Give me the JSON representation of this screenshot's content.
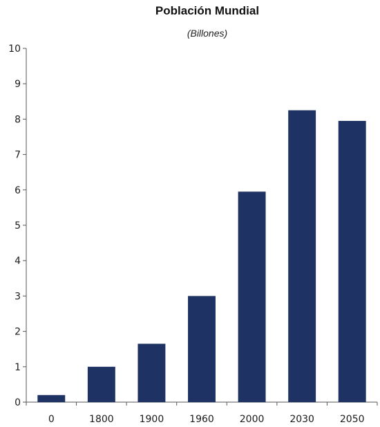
{
  "chart_data": {
    "type": "bar",
    "title": "Población Mundial",
    "subtitle": "(Billones)",
    "xlabel": "",
    "ylabel": "",
    "categories": [
      "0",
      "1800",
      "1900",
      "1960",
      "2000",
      "2030",
      "2050"
    ],
    "values": [
      0.2,
      1.0,
      1.65,
      3.0,
      5.95,
      8.25,
      7.95
    ],
    "ylim": [
      0,
      10
    ],
    "yticks": [
      "0",
      "1",
      "2",
      "3",
      "4",
      "5",
      "6",
      "7",
      "8",
      "9",
      "10"
    ],
    "grid": false,
    "legend": "none",
    "colors": {
      "bar": "#1f3264",
      "axis": "#555555"
    }
  }
}
